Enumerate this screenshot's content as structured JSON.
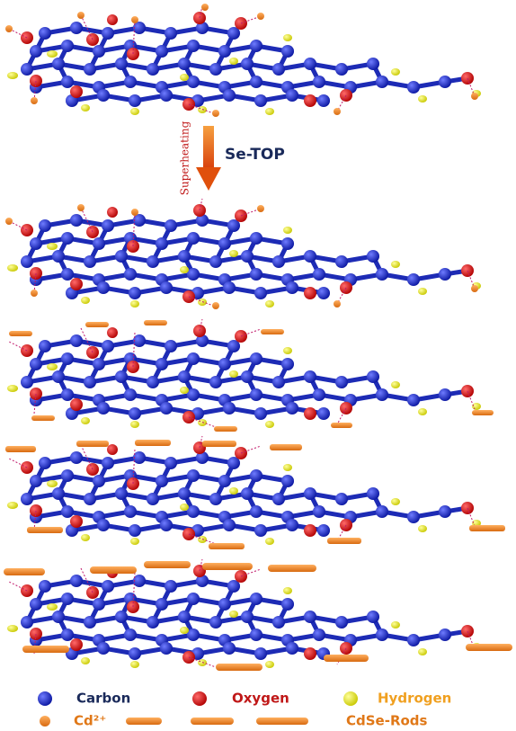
{
  "arrow": {
    "label": "Superheating",
    "reagent": "Se-TOP"
  },
  "legend": {
    "items": [
      "Carbon",
      "Oxygen",
      "Hydrogen",
      "Cd²⁺",
      "CdSe-Rods"
    ]
  }
}
